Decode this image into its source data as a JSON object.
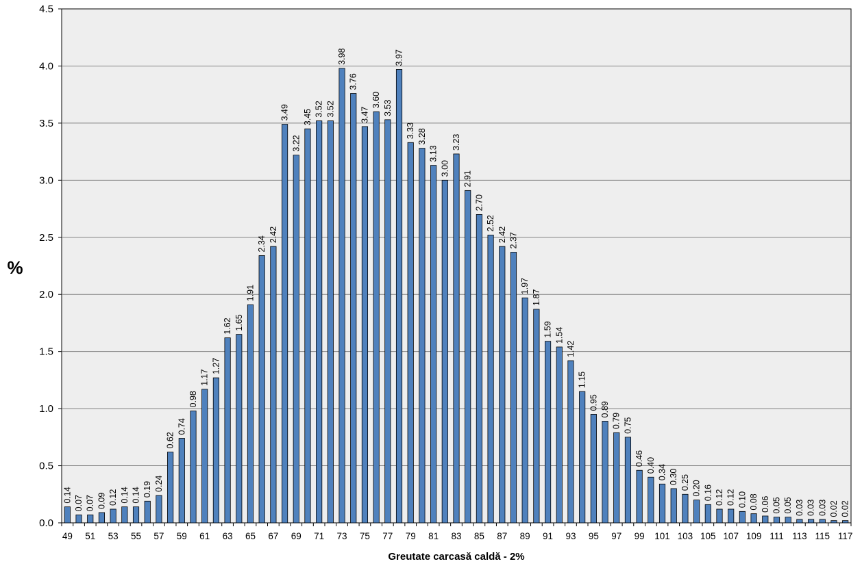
{
  "chart_data": {
    "type": "bar",
    "title": "",
    "xlabel": "Greutate carcasă caldă - 2%",
    "ylabel": "%",
    "ylim": [
      0,
      4.5
    ],
    "yticks": [
      "0.0",
      "0.5",
      "1.0",
      "1.5",
      "2.0",
      "2.5",
      "3.0",
      "3.5",
      "4.0",
      "4.5"
    ],
    "grid": true,
    "legend": "none",
    "categories": [
      49,
      50,
      51,
      52,
      53,
      54,
      55,
      56,
      57,
      58,
      59,
      60,
      61,
      62,
      63,
      64,
      65,
      66,
      67,
      68,
      69,
      70,
      71,
      72,
      73,
      74,
      75,
      76,
      77,
      78,
      79,
      80,
      81,
      82,
      83,
      84,
      85,
      86,
      87,
      88,
      89,
      90,
      91,
      92,
      93,
      94,
      95,
      96,
      97,
      98,
      99,
      100,
      101,
      102,
      103,
      104,
      105,
      106,
      107,
      108,
      109,
      110,
      111,
      112,
      113,
      114,
      115,
      116,
      117
    ],
    "x_tick_labels_shown": [
      "49",
      "51",
      "53",
      "55",
      "57",
      "59",
      "61",
      "63",
      "65",
      "67",
      "69",
      "71",
      "73",
      "75",
      "77",
      "79",
      "81",
      "83",
      "85",
      "87",
      "89",
      "91",
      "93",
      "95",
      "97",
      "99",
      "101",
      "103",
      "105",
      "107",
      "109",
      "111",
      "113",
      "115",
      "117"
    ],
    "values": [
      0.14,
      0.07,
      0.07,
      0.09,
      0.12,
      0.14,
      0.14,
      0.19,
      0.24,
      0.62,
      0.74,
      0.98,
      1.17,
      1.27,
      1.62,
      1.65,
      1.91,
      2.34,
      2.42,
      3.49,
      3.22,
      3.45,
      3.52,
      3.52,
      3.98,
      3.76,
      3.47,
      3.6,
      3.53,
      3.97,
      3.33,
      3.28,
      3.13,
      3.0,
      3.23,
      2.91,
      2.7,
      2.52,
      2.42,
      2.37,
      1.97,
      1.87,
      1.59,
      1.54,
      1.42,
      1.15,
      0.95,
      0.89,
      0.79,
      0.75,
      0.46,
      0.4,
      0.34,
      0.3,
      0.25,
      0.2,
      0.16,
      0.12,
      0.12,
      0.1,
      0.08,
      0.06,
      0.05,
      0.05,
      0.03,
      0.03,
      0.03,
      0.02,
      0.02
    ],
    "data_labels": [
      "0.14",
      "0.07",
      "0.07",
      "0.09",
      "0.12",
      "0.14",
      "0.14",
      "0.19",
      "0.24",
      "0.62",
      "0.74",
      "0.98",
      "1.17",
      "1.27",
      "1.62",
      "1.65",
      "1.91",
      "2.34",
      "2.42",
      "3.49",
      "3.22",
      "3.45",
      "3.52",
      "3.52",
      "3.98",
      "3.76",
      "3.47",
      "3.60",
      "3.53",
      "3.97",
      "3.33",
      "3.28",
      "3.13",
      "3.00",
      "3.23",
      "2.91",
      "2.70",
      "2.52",
      "2.42",
      "2.37",
      "1.97",
      "1.87",
      "1.59",
      "1.54",
      "1.42",
      "1.15",
      "0.95",
      "0.89",
      "0.79",
      "0.75",
      "0.46",
      "0.40",
      "0.34",
      "0.30",
      "0.25",
      "0.20",
      "0.16",
      "0.12",
      "0.12",
      "0.10",
      "0.08",
      "0.06",
      "0.05",
      "0.05",
      "0.03",
      "0.03",
      "0.03",
      "0.02",
      "0.02"
    ],
    "colors": {
      "bar_fill": "#4f81bd",
      "bar_stroke": "#000000",
      "plot_background": "#eeeeee",
      "grid": "#808080"
    }
  }
}
